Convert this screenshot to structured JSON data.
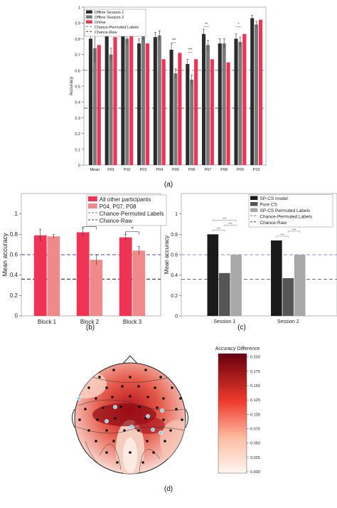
{
  "captions": {
    "a": "(a)",
    "b": "(b)",
    "c": "(c)",
    "d": "(d)"
  },
  "colors": {
    "offline1": "#2b2b2b",
    "offline2": "#7a7a7a",
    "online": "#ee3355",
    "pink1": "#ee3355",
    "pink2": "#f08a8a",
    "spcs": "#1a1a1a",
    "purecs": "#555555",
    "perm": "#a8a8a8",
    "chancePerm": "#6a6acd",
    "chanceRaw": "#444444"
  },
  "chart_data": [
    {
      "type": "bar",
      "panel": "a",
      "ylabel": "Accuracy",
      "ylim": [
        0,
        1
      ],
      "yticks": [
        "0",
        "0.1",
        "0.2",
        "0.3",
        "0.4",
        "0.5",
        "0.6",
        "0.7",
        "0.8",
        "0.9",
        "1"
      ],
      "categories": [
        "Mean",
        "P01",
        "P02",
        "P03",
        "P04",
        "P05",
        "P06",
        "P07",
        "P08",
        "P09",
        "P10"
      ],
      "series": [
        {
          "name": "Offline Session 1",
          "values": [
            0.8,
            0.85,
            0.86,
            0.77,
            0.81,
            0.73,
            0.64,
            0.83,
            0.77,
            0.8,
            0.93
          ]
        },
        {
          "name": "Offline Session 2",
          "values": [
            0.74,
            0.7,
            0.8,
            0.82,
            0.82,
            0.58,
            0.54,
            0.76,
            0.77,
            0.78,
            0.89
          ]
        },
        {
          "name": "Online",
          "values": [
            0.76,
            0.81,
            0.83,
            0.77,
            0.67,
            0.71,
            0.67,
            0.67,
            0.65,
            0.83,
            0.92
          ]
        }
      ],
      "errors": [
        [
          0.08,
          0.04,
          0.04,
          0.03,
          0.03,
          0.04,
          0.03,
          0.03,
          0.03,
          0.03,
          0.02
        ],
        [
          0.09,
          0.04,
          0.04,
          0.03,
          0.03,
          0.03,
          0.03,
          0.03,
          0.03,
          0.03,
          0.02
        ]
      ],
      "significance": [
        {
          "category": "P01",
          "text": "***"
        },
        {
          "category": "P02",
          "text": "*"
        },
        {
          "category": "P03",
          "text": "**"
        },
        {
          "category": "P05",
          "text": "***"
        },
        {
          "category": "P06",
          "text": "***"
        },
        {
          "category": "P07",
          "text": "**"
        },
        {
          "category": "P09",
          "text": "*"
        }
      ],
      "lines": [
        {
          "name": "Chance-Permuted Labels",
          "y": 0.6,
          "style": "dashed"
        },
        {
          "name": "Chance-Raw",
          "y": 0.36,
          "style": "dashed"
        }
      ],
      "legend": "top-left"
    },
    {
      "type": "bar",
      "panel": "b",
      "ylabel": "Mean accuracy",
      "ylim": [
        0,
        1.2
      ],
      "yticks": [
        "0",
        "0.2",
        "0.4",
        "0.6",
        "0.8",
        "1"
      ],
      "categories": [
        "Block 1",
        "Block 2",
        "Block 3"
      ],
      "series": [
        {
          "name": "All other participants",
          "values": [
            0.79,
            0.82,
            0.77
          ]
        },
        {
          "name": "P04, P07, P08",
          "values": [
            0.78,
            0.55,
            0.64
          ]
        }
      ],
      "errors": [
        [
          0.06,
          0.04,
          0.03
        ],
        [
          0.02,
          0.05,
          0.04
        ]
      ],
      "significance": [
        {
          "category": "Block 2",
          "text": "*"
        },
        {
          "category": "Block 3",
          "text": "*"
        }
      ],
      "lines": [
        {
          "name": "Chance-Permuted Labels",
          "y": 0.6,
          "style": "dashed"
        },
        {
          "name": "Chance-Raw",
          "y": 0.36,
          "style": "dashed"
        }
      ],
      "legend": "top-left"
    },
    {
      "type": "bar",
      "panel": "c",
      "ylabel": "Mean accuracy",
      "ylim": [
        0,
        1.2
      ],
      "yticks": [
        "0",
        "0.2",
        "0.4",
        "0.6",
        "0.8",
        "1"
      ],
      "categories": [
        "Session 1",
        "Session 2"
      ],
      "series": [
        {
          "name": "SP-CS model",
          "values": [
            0.8,
            0.74
          ]
        },
        {
          "name": "Pure CS",
          "values": [
            0.42,
            0.37
          ]
        },
        {
          "name": "SP-CS Permuted Labels",
          "values": [
            0.6,
            0.6
          ]
        }
      ],
      "significance": [
        {
          "category": "Session 1",
          "text": "****"
        },
        {
          "category": "Session 1",
          "text": "****"
        },
        {
          "category": "Session 1",
          "text": "****"
        },
        {
          "category": "Session 2",
          "text": "****"
        },
        {
          "category": "Session 2",
          "text": "****"
        },
        {
          "category": "Session 2",
          "text": "****"
        }
      ],
      "lines": [
        {
          "name": "Chance-Permuted Labels",
          "y": 0.6,
          "style": "dashed"
        },
        {
          "name": "Chance-Raw",
          "y": 0.36,
          "style": "dashed"
        }
      ],
      "legend": "top-right"
    },
    {
      "type": "heatmap",
      "panel": "d",
      "colorbar": {
        "label": "Accuracy Difference",
        "min": 0.0,
        "max": 0.2,
        "ticks": [
          "0.000",
          "0.025",
          "0.050",
          "0.075",
          "0.100",
          "0.125",
          "0.150",
          "0.175",
          "0.200"
        ]
      }
    }
  ]
}
